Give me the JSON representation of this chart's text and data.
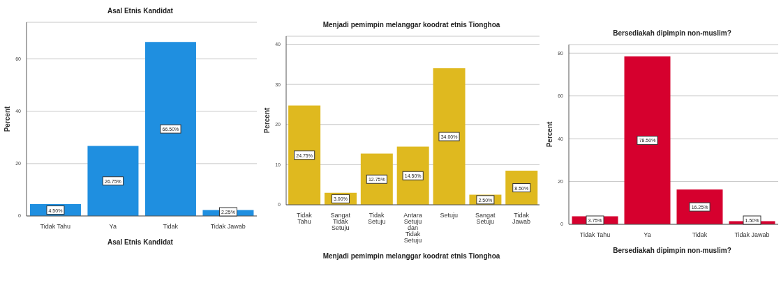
{
  "chart_data": [
    {
      "type": "bar",
      "title": "Asal Etnis Kandidat",
      "xlabel": "Asal Etnis Kandidat",
      "ylabel": "Percent",
      "categories": [
        "Tidak Tahu",
        "Ya",
        "Tidak",
        "Tidak Jawab"
      ],
      "values": [
        4.5,
        26.75,
        66.5,
        2.25
      ],
      "value_labels": [
        "4.50%",
        "26.75%",
        "66.50%",
        "2.25%"
      ],
      "color": "#1f8fe0",
      "ylim": [
        0,
        74
      ],
      "yticks": [
        0,
        20,
        40,
        60
      ],
      "grid": "y"
    },
    {
      "type": "bar",
      "title": "Menjadi pemimpin melanggar koodrat etnis Tionghoa",
      "xlabel": "Menjadi pemimpin melanggar koodrat etnis Tionghoa",
      "ylabel": "Percent",
      "categories": [
        "Tidak Tahu",
        "Sangat Tidak Setuju",
        "Tidak Setuju",
        "Antara Setuju dan Tidak Setuju",
        "Setuju",
        "Sangat Setuju",
        "Tidak Jawab"
      ],
      "values": [
        24.75,
        3.0,
        12.75,
        14.5,
        34.0,
        2.5,
        8.5
      ],
      "value_labels": [
        "24.75%",
        "3.00%",
        "12.75%",
        "14.50%",
        "34.00%",
        "2.50%",
        "8.50%"
      ],
      "color": "#dfb91f",
      "ylim": [
        0,
        42
      ],
      "yticks": [
        0,
        10,
        20,
        30,
        40
      ],
      "grid": "y"
    },
    {
      "type": "bar",
      "title": "Bersediakah dipimpin non-muslim?",
      "xlabel": "Bersediakah dipimpin non-muslim?",
      "ylabel": "Percent",
      "categories": [
        "Tidak Tahu",
        "Ya",
        "Tidak",
        "Tidak Jawab"
      ],
      "values": [
        3.75,
        78.5,
        16.25,
        1.5
      ],
      "value_labels": [
        "3.75%",
        "78.50%",
        "16.25%",
        "1.50%"
      ],
      "color": "#d6002e",
      "ylim": [
        0,
        84
      ],
      "yticks": [
        0,
        20,
        40,
        60,
        80
      ],
      "grid": "y"
    }
  ]
}
